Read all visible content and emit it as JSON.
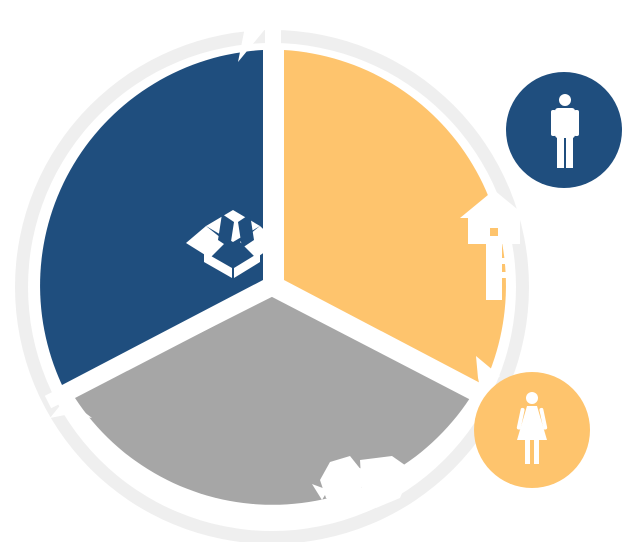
{
  "diagram": {
    "segments": [
      {
        "id": "top-left",
        "color": "#1f4e7e",
        "icon": "open-box-icon"
      },
      {
        "id": "right",
        "color": "#fec46d",
        "icon": "house-key-icon"
      },
      {
        "id": "bottom",
        "color": "#a6a6a6",
        "icon": "handshake-icon"
      }
    ],
    "ring_color": "#efefef",
    "badges": [
      {
        "id": "man",
        "color": "#1f4e7e",
        "icon": "man-icon"
      },
      {
        "id": "woman",
        "color": "#fec46d",
        "icon": "woman-icon"
      }
    ]
  }
}
